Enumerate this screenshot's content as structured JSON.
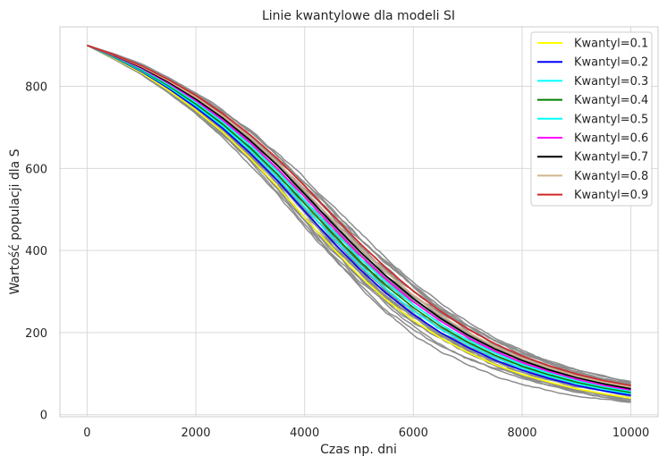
{
  "chart_data": {
    "type": "line",
    "title": "Linie kwantylowe dla modeli SI",
    "xlabel": "Czas np. dni",
    "ylabel": "Wartość populacji dla S",
    "xlim": [
      -500,
      10500
    ],
    "ylim": [
      -5,
      945
    ],
    "xticks": [
      0,
      2000,
      4000,
      6000,
      8000,
      10000
    ],
    "yticks": [
      0,
      200,
      400,
      600,
      800
    ],
    "grid": true,
    "legend_position": "top-right",
    "background_color": "#ffffff",
    "grid_color": "#d9d9d9",
    "simulation_color": "#8c8c8c",
    "simulation_count": 30,
    "x": [
      0,
      500,
      1000,
      1500,
      2000,
      2500,
      3000,
      3500,
      4000,
      4500,
      5000,
      5500,
      6000,
      6500,
      7000,
      7500,
      8000,
      8500,
      9000,
      9500,
      10000
    ],
    "series": [
      {
        "name": "Kwantyl=0.1",
        "color": "#ffff00",
        "values": [
          900,
          868,
          833,
          790,
          742,
          688,
          625,
          556,
          480,
          408,
          340,
          280,
          230,
          187,
          152,
          122,
          98,
          79,
          63,
          51,
          40
        ]
      },
      {
        "name": "Kwantyl=0.2",
        "color": "#0000ff",
        "values": [
          900,
          870,
          836,
          795,
          749,
          697,
          637,
          570,
          496,
          424,
          356,
          296,
          244,
          200,
          164,
          133,
          108,
          88,
          71,
          58,
          47
        ]
      },
      {
        "name": "Kwantyl=0.3",
        "color": "#00ffff",
        "values": [
          900,
          871,
          838,
          798,
          753,
          702,
          644,
          578,
          506,
          434,
          366,
          306,
          253,
          208,
          171,
          139,
          113,
          93,
          76,
          62,
          51
        ]
      },
      {
        "name": "Kwantyl=0.4",
        "color": "#008000",
        "values": [
          900,
          872,
          840,
          801,
          757,
          707,
          650,
          586,
          514,
          443,
          375,
          314,
          261,
          215,
          177,
          145,
          118,
          97,
          79,
          65,
          54
        ]
      },
      {
        "name": "Kwantyl=0.5",
        "color": "#00ffff",
        "values": [
          900,
          873,
          842,
          804,
          761,
          712,
          656,
          592,
          522,
          451,
          383,
          322,
          268,
          221,
          182,
          150,
          122,
          101,
          83,
          68,
          57
        ]
      },
      {
        "name": "Kwantyl=0.6",
        "color": "#ff00ff",
        "values": [
          900,
          874,
          844,
          807,
          765,
          717,
          662,
          600,
          530,
          460,
          391,
          330,
          275,
          228,
          188,
          155,
          127,
          105,
          86,
          71,
          60
        ]
      },
      {
        "name": "Kwantyl=0.7",
        "color": "#000000",
        "values": [
          900,
          875,
          846,
          810,
          769,
          722,
          668,
          607,
          538,
          468,
          400,
          338,
          283,
          235,
          194,
          160,
          132,
          109,
          90,
          75,
          63
        ]
      },
      {
        "name": "Kwantyl=0.8",
        "color": "#d2b48c",
        "values": [
          900,
          876,
          848,
          813,
          773,
          727,
          675,
          615,
          547,
          477,
          409,
          347,
          291,
          243,
          201,
          166,
          137,
          114,
          94,
          79,
          67
        ]
      },
      {
        "name": "Kwantyl=0.9",
        "color": "#d62728",
        "values": [
          900,
          877,
          850,
          816,
          778,
          733,
          682,
          624,
          557,
          488,
          420,
          357,
          301,
          252,
          209,
          173,
          143,
          119,
          99,
          83,
          71
        ]
      }
    ]
  }
}
